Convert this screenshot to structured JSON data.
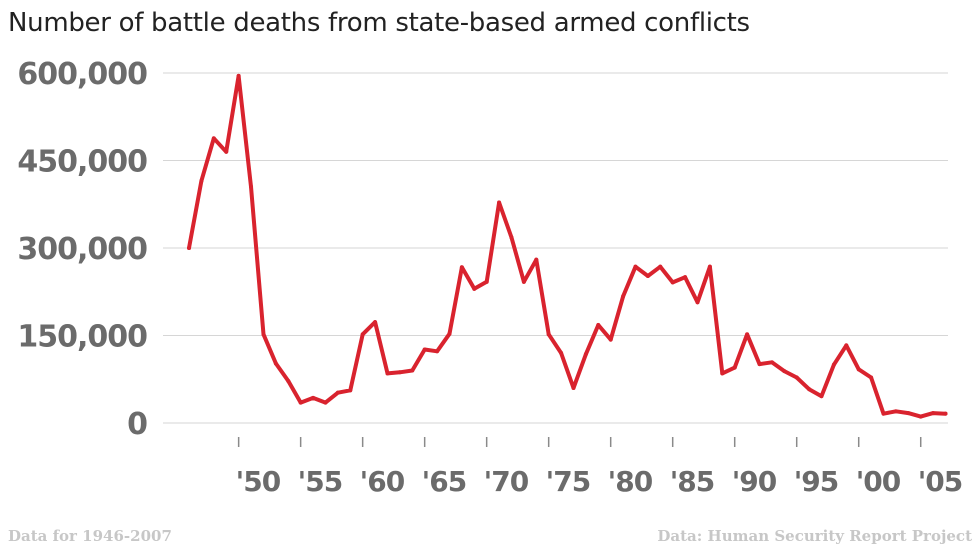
{
  "colors": {
    "line": "#d9232e",
    "grid": "#d6d6d6",
    "tick": "#6b6b6b",
    "footnote": "#c7c7c7"
  },
  "footer": {
    "left": "Data for 1946-2007",
    "right": "Data: Human Security Report Project"
  },
  "chart_data": {
    "type": "line",
    "title": "Number of battle deaths from state-based armed conflicts",
    "xlabel": "",
    "ylabel": "",
    "ylim": [
      0,
      600000
    ],
    "xlim": [
      1946,
      2007
    ],
    "y_ticks": [
      {
        "value": 0,
        "label": "0"
      },
      {
        "value": 150000,
        "label": "150,000"
      },
      {
        "value": 300000,
        "label": "300,000"
      },
      {
        "value": 450000,
        "label": "450,000"
      },
      {
        "value": 600000,
        "label": "600,000"
      }
    ],
    "x_ticks": [
      {
        "value": 1950,
        "label": "'50"
      },
      {
        "value": 1955,
        "label": "'55"
      },
      {
        "value": 1960,
        "label": "'60"
      },
      {
        "value": 1965,
        "label": "'65"
      },
      {
        "value": 1970,
        "label": "'70"
      },
      {
        "value": 1975,
        "label": "'75"
      },
      {
        "value": 1980,
        "label": "'80"
      },
      {
        "value": 1985,
        "label": "'85"
      },
      {
        "value": 1990,
        "label": "'90"
      },
      {
        "value": 1995,
        "label": "'95"
      },
      {
        "value": 2000,
        "label": "'00"
      },
      {
        "value": 2005,
        "label": "'05"
      }
    ],
    "grid": true,
    "legend": "none",
    "series": [
      {
        "x": [
          1946,
          1947,
          1948,
          1949,
          1950,
          1951,
          1952,
          1953,
          1954,
          1955,
          1956,
          1957,
          1958,
          1959,
          1960,
          1961,
          1962,
          1963,
          1964,
          1965,
          1966,
          1967,
          1968,
          1969,
          1970,
          1971,
          1972,
          1973,
          1974,
          1975,
          1976,
          1977,
          1978,
          1979,
          1980,
          1981,
          1982,
          1983,
          1984,
          1985,
          1986,
          1987,
          1988,
          1989,
          1990,
          1991,
          1992,
          1993,
          1994,
          1995,
          1996,
          1997,
          1998,
          1999,
          2000,
          2001,
          2002,
          2003,
          2004,
          2005,
          2006,
          2007
        ],
        "y": [
          300000,
          415000,
          488000,
          465000,
          595000,
          405000,
          152000,
          102000,
          72000,
          35000,
          43000,
          35000,
          52000,
          56000,
          152000,
          173000,
          85000,
          87000,
          90000,
          126000,
          123000,
          153000,
          267000,
          230000,
          242000,
          378000,
          318000,
          242000,
          280000,
          152000,
          120000,
          60000,
          118000,
          168000,
          143000,
          217000,
          268000,
          252000,
          268000,
          241000,
          250000,
          207000,
          268000,
          85000,
          95000,
          152000,
          101000,
          104000,
          89000,
          78000,
          58000,
          46000,
          100000,
          133000,
          92000,
          78000,
          16000,
          20000,
          17000,
          11000,
          17000,
          16000
        ]
      }
    ]
  }
}
